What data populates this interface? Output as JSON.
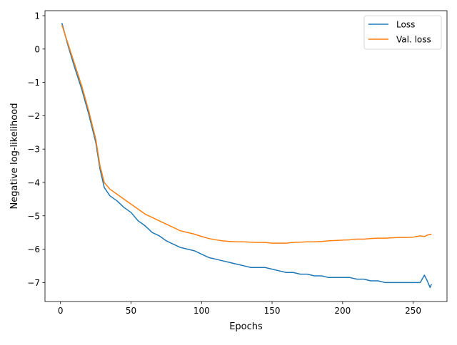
{
  "chart_data": {
    "type": "line",
    "title": "",
    "xlabel": "Epochs",
    "ylabel": "Negative log-likelihood",
    "xlim": [
      -11,
      274
    ],
    "ylim": [
      -7.57,
      1.15
    ],
    "xticks": [
      0,
      50,
      100,
      150,
      200,
      250
    ],
    "yticks": [
      1,
      0,
      -1,
      -2,
      -3,
      -4,
      -5,
      -6,
      -7
    ],
    "ytick_labels": [
      "1",
      "0",
      "−1",
      "−2",
      "−3",
      "−4",
      "−5",
      "−6",
      "−7"
    ],
    "grid": false,
    "legend_position": "top-right",
    "series": [
      {
        "name": "Loss",
        "color": "#1f77b4",
        "points": [
          [
            1,
            0.78
          ],
          [
            5,
            0.15
          ],
          [
            10,
            -0.55
          ],
          [
            15,
            -1.2
          ],
          [
            20,
            -1.95
          ],
          [
            25,
            -2.8
          ],
          [
            28,
            -3.6
          ],
          [
            31,
            -4.15
          ],
          [
            35,
            -4.4
          ],
          [
            40,
            -4.55
          ],
          [
            45,
            -4.75
          ],
          [
            50,
            -4.9
          ],
          [
            55,
            -5.15
          ],
          [
            60,
            -5.3
          ],
          [
            65,
            -5.5
          ],
          [
            70,
            -5.6
          ],
          [
            75,
            -5.75
          ],
          [
            80,
            -5.85
          ],
          [
            85,
            -5.95
          ],
          [
            90,
            -6.0
          ],
          [
            95,
            -6.05
          ],
          [
            100,
            -6.15
          ],
          [
            105,
            -6.25
          ],
          [
            110,
            -6.3
          ],
          [
            115,
            -6.35
          ],
          [
            120,
            -6.4
          ],
          [
            125,
            -6.45
          ],
          [
            130,
            -6.5
          ],
          [
            135,
            -6.55
          ],
          [
            140,
            -6.55
          ],
          [
            145,
            -6.55
          ],
          [
            150,
            -6.6
          ],
          [
            155,
            -6.65
          ],
          [
            160,
            -6.7
          ],
          [
            165,
            -6.7
          ],
          [
            170,
            -6.75
          ],
          [
            175,
            -6.75
          ],
          [
            180,
            -6.8
          ],
          [
            185,
            -6.8
          ],
          [
            190,
            -6.85
          ],
          [
            195,
            -6.85
          ],
          [
            200,
            -6.85
          ],
          [
            205,
            -6.85
          ],
          [
            210,
            -6.9
          ],
          [
            215,
            -6.9
          ],
          [
            220,
            -6.95
          ],
          [
            225,
            -6.95
          ],
          [
            230,
            -7.0
          ],
          [
            235,
            -7.0
          ],
          [
            240,
            -7.0
          ],
          [
            245,
            -7.0
          ],
          [
            250,
            -7.0
          ],
          [
            255,
            -7.0
          ],
          [
            258,
            -6.78
          ],
          [
            260,
            -6.95
          ],
          [
            262,
            -7.15
          ],
          [
            263,
            -7.05
          ]
        ]
      },
      {
        "name": "Val. loss",
        "color": "#ff7f0e",
        "points": [
          [
            1,
            0.72
          ],
          [
            5,
            0.2
          ],
          [
            10,
            -0.45
          ],
          [
            15,
            -1.1
          ],
          [
            20,
            -1.85
          ],
          [
            25,
            -2.7
          ],
          [
            28,
            -3.5
          ],
          [
            31,
            -4.0
          ],
          [
            35,
            -4.2
          ],
          [
            40,
            -4.35
          ],
          [
            45,
            -4.5
          ],
          [
            50,
            -4.65
          ],
          [
            55,
            -4.8
          ],
          [
            60,
            -4.95
          ],
          [
            65,
            -5.05
          ],
          [
            70,
            -5.15
          ],
          [
            75,
            -5.25
          ],
          [
            80,
            -5.35
          ],
          [
            85,
            -5.45
          ],
          [
            90,
            -5.5
          ],
          [
            95,
            -5.55
          ],
          [
            100,
            -5.62
          ],
          [
            105,
            -5.68
          ],
          [
            110,
            -5.72
          ],
          [
            115,
            -5.75
          ],
          [
            120,
            -5.77
          ],
          [
            125,
            -5.78
          ],
          [
            130,
            -5.78
          ],
          [
            135,
            -5.79
          ],
          [
            140,
            -5.8
          ],
          [
            145,
            -5.8
          ],
          [
            150,
            -5.82
          ],
          [
            155,
            -5.82
          ],
          [
            160,
            -5.82
          ],
          [
            165,
            -5.8
          ],
          [
            170,
            -5.79
          ],
          [
            175,
            -5.78
          ],
          [
            180,
            -5.78
          ],
          [
            185,
            -5.77
          ],
          [
            190,
            -5.75
          ],
          [
            195,
            -5.74
          ],
          [
            200,
            -5.73
          ],
          [
            205,
            -5.72
          ],
          [
            210,
            -5.7
          ],
          [
            215,
            -5.7
          ],
          [
            220,
            -5.68
          ],
          [
            225,
            -5.67
          ],
          [
            230,
            -5.67
          ],
          [
            235,
            -5.66
          ],
          [
            240,
            -5.65
          ],
          [
            245,
            -5.65
          ],
          [
            250,
            -5.64
          ],
          [
            255,
            -5.6
          ],
          [
            258,
            -5.62
          ],
          [
            260,
            -5.58
          ],
          [
            263,
            -5.55
          ]
        ]
      }
    ]
  }
}
